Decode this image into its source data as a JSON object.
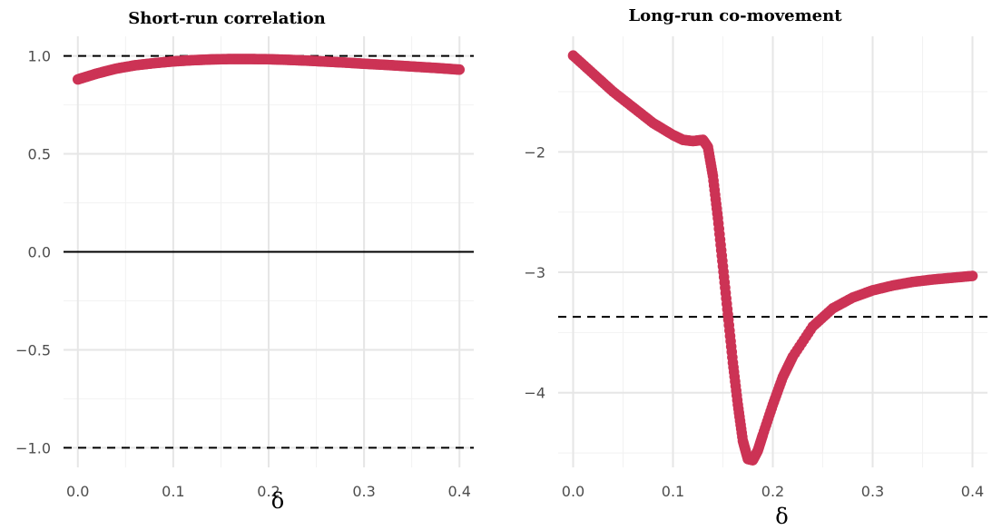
{
  "chart_data": [
    {
      "type": "scatter",
      "title": "Short-run correlation",
      "xlabel": "δ",
      "ylabel": "",
      "xlim": [
        -0.015,
        0.415
      ],
      "ylim": [
        -1.1,
        1.1
      ],
      "x_ticks": [
        0.0,
        0.1,
        0.2,
        0.3,
        0.4
      ],
      "x_tick_labels": [
        "0.0",
        "0.1",
        "0.2",
        "0.3",
        "0.4"
      ],
      "y_ticks": [
        -1.0,
        -0.5,
        0.0,
        0.5,
        1.0
      ],
      "y_tick_labels": [
        "−1.0",
        "−0.5",
        "0.0",
        "0.5",
        "1.0"
      ],
      "grid": true,
      "point_color": "#cc3355",
      "reference_lines": [
        {
          "y": 1.0,
          "style": "dashed"
        },
        {
          "y": -1.0,
          "style": "dashed"
        },
        {
          "y": 0.0,
          "style": "solid"
        }
      ],
      "series": [
        {
          "x": [
            0.0,
            0.02,
            0.04,
            0.06,
            0.08,
            0.1,
            0.12,
            0.14,
            0.16,
            0.18,
            0.2,
            0.22,
            0.24,
            0.26,
            0.28,
            0.3,
            0.32,
            0.34,
            0.36,
            0.38,
            0.4
          ],
          "y": [
            0.88,
            0.91,
            0.935,
            0.952,
            0.963,
            0.972,
            0.978,
            0.982,
            0.984,
            0.984,
            0.983,
            0.98,
            0.976,
            0.971,
            0.966,
            0.96,
            0.955,
            0.949,
            0.943,
            0.937,
            0.93
          ]
        }
      ]
    },
    {
      "type": "scatter",
      "title": "Long-run co-movement",
      "xlabel": "δ",
      "ylabel": "",
      "xlim": [
        -0.015,
        0.415
      ],
      "ylim": [
        -4.62,
        -1.04
      ],
      "x_ticks": [
        0.0,
        0.1,
        0.2,
        0.3,
        0.4
      ],
      "x_tick_labels": [
        "0.0",
        "0.1",
        "0.2",
        "0.3",
        "0.4"
      ],
      "y_ticks": [
        -4,
        -3,
        -2
      ],
      "y_tick_labels": [
        "−4",
        "−3",
        "−2"
      ],
      "grid": true,
      "point_color": "#cc3355",
      "reference_lines": [
        {
          "y": -3.37,
          "style": "dashed"
        }
      ],
      "series": [
        {
          "x": [
            0.0,
            0.02,
            0.04,
            0.06,
            0.08,
            0.1,
            0.11,
            0.12,
            0.13,
            0.135,
            0.14,
            0.145,
            0.15,
            0.155,
            0.16,
            0.165,
            0.17,
            0.175,
            0.18,
            0.185,
            0.19,
            0.2,
            0.21,
            0.22,
            0.24,
            0.26,
            0.28,
            0.3,
            0.32,
            0.34,
            0.36,
            0.38,
            0.4
          ],
          "y": [
            -1.2,
            -1.35,
            -1.5,
            -1.63,
            -1.76,
            -1.86,
            -1.9,
            -1.91,
            -1.9,
            -1.96,
            -2.2,
            -2.55,
            -2.95,
            -3.35,
            -3.75,
            -4.1,
            -4.4,
            -4.55,
            -4.56,
            -4.48,
            -4.35,
            -4.1,
            -3.87,
            -3.7,
            -3.45,
            -3.3,
            -3.21,
            -3.15,
            -3.11,
            -3.08,
            -3.06,
            -3.045,
            -3.03
          ]
        }
      ]
    }
  ]
}
